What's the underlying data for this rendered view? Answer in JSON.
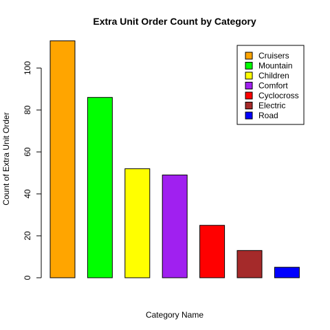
{
  "chart_data": {
    "type": "bar",
    "title": "Extra Unit Order Count by Category",
    "xlabel": "Category Name",
    "ylabel": "Count of Extra Unit Order",
    "categories": [
      "Cruisers",
      "Mountain",
      "Children",
      "Comfort",
      "Cyclocross",
      "Electric",
      "Road"
    ],
    "values": [
      113,
      86,
      52,
      49,
      25,
      13,
      5
    ],
    "colors": [
      "#FFA500",
      "#00FF00",
      "#FFFF00",
      "#A020F0",
      "#FF0000",
      "#A52A2A",
      "#0000FF"
    ],
    "yticks": [
      "0",
      "20",
      "40",
      "60",
      "80",
      "100"
    ],
    "ylim": [
      0,
      113
    ],
    "grid": false,
    "legend": {
      "position": "top-right",
      "entries": [
        "Cruisers",
        "Mountain",
        "Children",
        "Comfort",
        "Cyclocross",
        "Electric",
        "Road"
      ]
    }
  }
}
